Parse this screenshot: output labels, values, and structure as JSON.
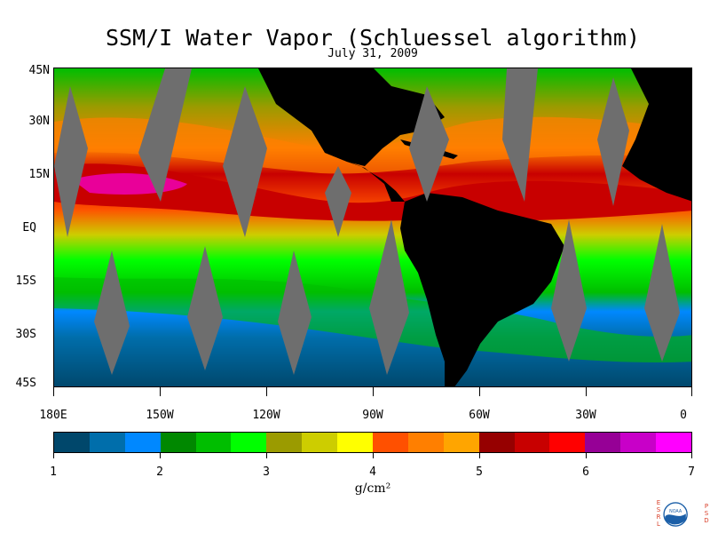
{
  "header": {
    "title": "SSM/I Water Vapor (Schluessel algorithm)",
    "date": "July 31, 2009"
  },
  "map": {
    "latitude_labels": [
      "45N",
      "30N",
      "15N",
      "EQ",
      "15S",
      "30S",
      "45S"
    ],
    "longitude_labels": [
      "180E",
      "150W",
      "120W",
      "90W",
      "60W",
      "30W",
      "0"
    ],
    "land_color": "#000000",
    "no_data_color": "#6e6e6e"
  },
  "colorbar": {
    "labels": [
      "1",
      "2",
      "3",
      "4",
      "5",
      "6",
      "7"
    ],
    "units": "g/cm²",
    "colors": [
      "#00476b",
      "#006eab",
      "#0088ff",
      "#008800",
      "#00be00",
      "#00ff00",
      "#9b9b00",
      "#cdcd00",
      "#ffff00",
      "#ff5000",
      "#ff7f00",
      "#ffa500",
      "#960000",
      "#c80000",
      "#ff0000",
      "#960096",
      "#c800c8",
      "#ff00ff"
    ]
  },
  "footer": {
    "logo_label": "NOAA",
    "left_vertical": "ESRL",
    "right_vertical": "PSD"
  }
}
